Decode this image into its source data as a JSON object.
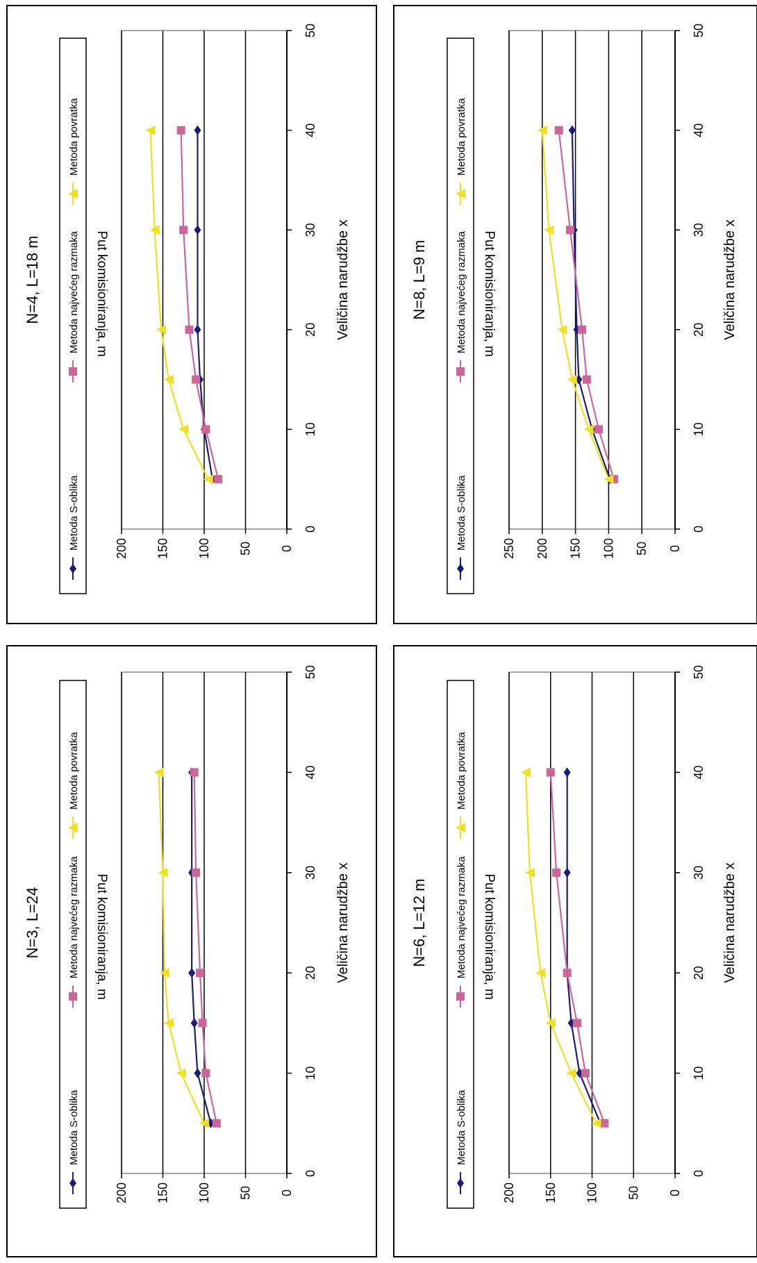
{
  "chart_data": [
    {
      "type": "line",
      "title": "N=4, L=18 m",
      "xlabel": "Veličina narudžbe x",
      "ylabel": "Put komisioniranja, m",
      "xlim": [
        0,
        50
      ],
      "ylim": [
        0,
        200
      ],
      "xticks": [
        "0",
        "10",
        "20",
        "30",
        "40",
        "50"
      ],
      "yticks": [
        "0",
        "50",
        "100",
        "150",
        "200"
      ],
      "x": [
        5,
        10,
        15,
        20,
        30,
        40
      ],
      "series": [
        {
          "name": "Metoda S-oblika",
          "marker": "diamond",
          "color": "#1b1b7a",
          "values": [
            90,
            100,
            105,
            108,
            108,
            108
          ]
        },
        {
          "name": "Metoda najvećeg razmaka",
          "marker": "square",
          "color": "#cc6699",
          "values": [
            83,
            98,
            110,
            118,
            125,
            128
          ]
        },
        {
          "name": "Metoda povratka",
          "marker": "triangle",
          "color": "#f0e020",
          "values": [
            95,
            125,
            143,
            152,
            160,
            165
          ]
        }
      ],
      "grid": "horizontal",
      "legend": "top"
    },
    {
      "type": "line",
      "title": "N=3, L=24",
      "xlabel": "Veličina narudžbe x",
      "ylabel": "Put komisioniranja, m",
      "xlim": [
        0,
        50
      ],
      "ylim": [
        0,
        200
      ],
      "xticks": [
        "0",
        "10",
        "20",
        "30",
        "40",
        "50"
      ],
      "yticks": [
        "0",
        "50",
        "100",
        "150",
        "200"
      ],
      "x": [
        5,
        10,
        15,
        20,
        30,
        40
      ],
      "series": [
        {
          "name": "Metoda S-oblika",
          "marker": "diamond",
          "color": "#1b1b7a",
          "values": [
            92,
            108,
            112,
            115,
            115,
            115
          ]
        },
        {
          "name": "Metoda najvećeg razmaka",
          "marker": "square",
          "color": "#cc6699",
          "values": [
            85,
            98,
            102,
            105,
            110,
            112
          ]
        },
        {
          "name": "Metoda povratka",
          "marker": "triangle",
          "color": "#f0e020",
          "values": [
            100,
            128,
            143,
            148,
            150,
            155
          ]
        }
      ],
      "grid": "horizontal",
      "legend": "top"
    },
    {
      "type": "line",
      "title": "N=8, L=9 m",
      "xlabel": "Veličina narudžbe x",
      "ylabel": "Put komisioniranja, m",
      "xlim": [
        0,
        50
      ],
      "ylim": [
        0,
        250
      ],
      "xticks": [
        "0",
        "10",
        "20",
        "30",
        "40",
        "50"
      ],
      "yticks": [
        "0",
        "50",
        "100",
        "150",
        "200",
        "250"
      ],
      "x": [
        5,
        10,
        15,
        20,
        30,
        40
      ],
      "series": [
        {
          "name": "Metoda S-oblika",
          "marker": "diamond",
          "color": "#1b1b7a",
          "values": [
            98,
            125,
            145,
            148,
            152,
            155
          ]
        },
        {
          "name": "Metoda najvećeg razmaka",
          "marker": "square",
          "color": "#cc6699",
          "values": [
            92,
            115,
            133,
            140,
            158,
            175
          ]
        },
        {
          "name": "Metoda povratka",
          "marker": "triangle",
          "color": "#f0e020",
          "values": [
            100,
            130,
            155,
            170,
            190,
            200
          ]
        }
      ],
      "grid": "horizontal",
      "legend": "top"
    },
    {
      "type": "line",
      "title": "N=6, L=12 m",
      "xlabel": "Veličina narudžbe x",
      "ylabel": "Put komisioniranja, m",
      "xlim": [
        0,
        50
      ],
      "ylim": [
        0,
        200
      ],
      "xticks": [
        "0",
        "10",
        "20",
        "30",
        "40",
        "50"
      ],
      "yticks": [
        "0",
        "50",
        "100",
        "150",
        "200"
      ],
      "x": [
        5,
        10,
        15,
        20,
        30,
        40
      ],
      "series": [
        {
          "name": "Metoda S-oblika",
          "marker": "diamond",
          "color": "#1b1b7a",
          "values": [
            90,
            115,
            125,
            130,
            130,
            130
          ]
        },
        {
          "name": "Metoda najvećeg razmaka",
          "marker": "square",
          "color": "#cc6699",
          "values": [
            85,
            108,
            118,
            130,
            143,
            150
          ]
        },
        {
          "name": "Metoda povratka",
          "marker": "triangle",
          "color": "#f0e020",
          "values": [
            95,
            125,
            150,
            162,
            175,
            180
          ]
        }
      ],
      "grid": "horizontal",
      "legend": "top"
    }
  ]
}
